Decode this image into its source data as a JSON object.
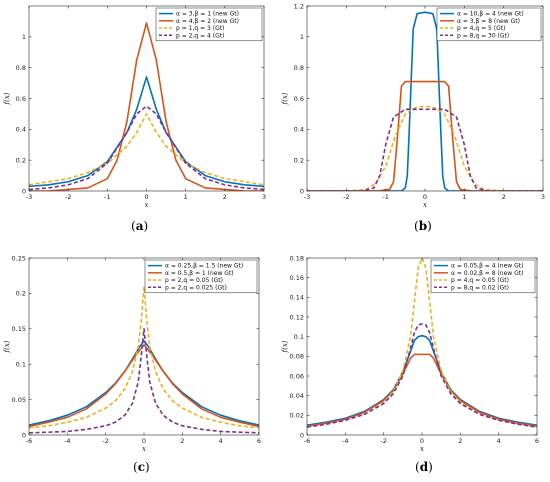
{
  "chart_data": [
    {
      "type": "line",
      "caption": "a",
      "xlabel": "x",
      "ylabel": "f(x)",
      "xlim": [
        -3,
        3
      ],
      "ylim": [
        0,
        1.2
      ],
      "xticks": [
        "-3",
        "-2",
        "-1",
        "0",
        "1",
        "2",
        "3"
      ],
      "yticks": [
        "0",
        "0.2",
        "0.4",
        "0.6",
        "0.8",
        "1"
      ],
      "legend_position": "top-right",
      "series": [
        {
          "name": "α = 3,β = 1 (new Gt)",
          "color": "#0072BD",
          "dash": "solid",
          "x": [
            -3,
            -2.5,
            -2,
            -1.5,
            -1,
            -0.5,
            -0.25,
            0,
            0.25,
            0.5,
            1,
            1.5,
            2,
            2.5,
            3
          ],
          "y": [
            0.03,
            0.04,
            0.06,
            0.1,
            0.19,
            0.38,
            0.53,
            0.74,
            0.53,
            0.38,
            0.19,
            0.1,
            0.06,
            0.04,
            0.03
          ]
        },
        {
          "name": "α = 4,β = 2 (new Gt)",
          "color": "#D95319",
          "dash": "solid",
          "x": [
            -3,
            -2.5,
            -2,
            -1.5,
            -1,
            -0.75,
            -0.5,
            -0.25,
            0,
            0.25,
            0.5,
            0.75,
            1,
            1.5,
            2,
            2.5,
            3
          ],
          "y": [
            0.0,
            0.0,
            0.01,
            0.02,
            0.08,
            0.2,
            0.45,
            0.85,
            1.09,
            0.85,
            0.45,
            0.2,
            0.08,
            0.02,
            0.01,
            0.0,
            0.0
          ]
        },
        {
          "name": "p = 1,q = 3 (Gt)",
          "color": "#EDB120",
          "dash": "dashed",
          "x": [
            -3,
            -2.5,
            -2,
            -1.5,
            -1,
            -0.5,
            -0.25,
            0,
            0.25,
            0.5,
            1,
            1.5,
            2,
            2.5,
            3
          ],
          "y": [
            0.04,
            0.06,
            0.08,
            0.12,
            0.18,
            0.29,
            0.38,
            0.5,
            0.38,
            0.29,
            0.18,
            0.12,
            0.08,
            0.06,
            0.04
          ]
        },
        {
          "name": "p = 2,q = 4 (Gt)",
          "color": "#7E2F8E",
          "dash": "dashed",
          "x": [
            -3,
            -2.5,
            -2,
            -1.5,
            -1,
            -0.5,
            -0.25,
            0,
            0.25,
            0.5,
            1,
            1.5,
            2,
            2.5,
            3
          ],
          "y": [
            0.01,
            0.02,
            0.04,
            0.08,
            0.18,
            0.38,
            0.5,
            0.55,
            0.5,
            0.38,
            0.18,
            0.08,
            0.04,
            0.02,
            0.01
          ]
        }
      ]
    },
    {
      "type": "line",
      "caption": "b",
      "xlabel": "x",
      "ylabel": "f(x)",
      "xlim": [
        -3,
        3
      ],
      "ylim": [
        0,
        1.2
      ],
      "xticks": [
        "-3",
        "-2",
        "-1",
        "0",
        "1",
        "2",
        "3"
      ],
      "yticks": [
        "0",
        "0.2",
        "0.4",
        "0.6",
        "0.8",
        "1",
        "1.2"
      ],
      "legend_position": "top-right",
      "series": [
        {
          "name": "α = 10,β = 4 (new Gt)",
          "color": "#0072BD",
          "dash": "solid",
          "x": [
            -3,
            -1,
            -0.6,
            -0.5,
            -0.45,
            -0.4,
            -0.3,
            -0.2,
            0,
            0.2,
            0.3,
            0.4,
            0.45,
            0.5,
            0.6,
            1,
            3
          ],
          "y": [
            0,
            0,
            0.0,
            0.02,
            0.1,
            0.4,
            1.05,
            1.15,
            1.16,
            1.15,
            1.05,
            0.4,
            0.1,
            0.02,
            0.0,
            0,
            0
          ]
        },
        {
          "name": "α = 3,β = 8 (new Gt)",
          "color": "#D95319",
          "dash": "solid",
          "x": [
            -3,
            -1.2,
            -0.9,
            -0.8,
            -0.7,
            -0.6,
            -0.5,
            0,
            0.5,
            0.6,
            0.7,
            0.8,
            0.9,
            1.2,
            3
          ],
          "y": [
            0,
            0,
            0.01,
            0.06,
            0.35,
            0.68,
            0.71,
            0.71,
            0.71,
            0.68,
            0.35,
            0.06,
            0.01,
            0,
            0
          ]
        },
        {
          "name": "p = 4,q = 5 (Gt)",
          "color": "#EDB120",
          "dash": "dashed",
          "x": [
            -3,
            -2,
            -1.5,
            -1.25,
            -1,
            -0.75,
            -0.5,
            -0.25,
            0,
            0.25,
            0.5,
            0.75,
            1,
            1.25,
            1.5,
            2,
            3
          ],
          "y": [
            0,
            0.0,
            0.01,
            0.05,
            0.16,
            0.36,
            0.5,
            0.54,
            0.55,
            0.54,
            0.5,
            0.36,
            0.16,
            0.05,
            0.01,
            0.0,
            0
          ]
        },
        {
          "name": "p = 8,q = 30 (Gt)",
          "color": "#7E2F8E",
          "dash": "dashed",
          "x": [
            -3,
            -1.6,
            -1.3,
            -1.15,
            -1.0,
            -0.8,
            -0.5,
            0,
            0.5,
            0.8,
            1.0,
            1.15,
            1.3,
            1.6,
            3
          ],
          "y": [
            0,
            0,
            0.02,
            0.1,
            0.3,
            0.48,
            0.53,
            0.53,
            0.53,
            0.48,
            0.3,
            0.1,
            0.02,
            0,
            0
          ]
        }
      ]
    },
    {
      "type": "line",
      "caption": "c",
      "xlabel": "x",
      "ylabel": "f(x)",
      "xlim": [
        -6,
        6
      ],
      "ylim": [
        0,
        0.25
      ],
      "xticks": [
        "-6",
        "-4",
        "-2",
        "0",
        "2",
        "4",
        "6"
      ],
      "yticks": [
        "0",
        "0.05",
        "0.1",
        "0.15",
        "0.2",
        "0.25"
      ],
      "legend_position": "top-right",
      "series": [
        {
          "name": "α = 0.25,β = 1.5 (new Gt)",
          "color": "#0072BD",
          "dash": "solid",
          "x": [
            -6,
            -5,
            -4,
            -3,
            -2,
            -1.5,
            -1,
            -0.5,
            -0.25,
            0,
            0.25,
            0.5,
            1,
            1.5,
            2,
            3,
            4,
            5,
            6
          ],
          "y": [
            0.014,
            0.02,
            0.028,
            0.04,
            0.06,
            0.073,
            0.09,
            0.112,
            0.124,
            0.133,
            0.124,
            0.112,
            0.09,
            0.073,
            0.06,
            0.04,
            0.028,
            0.02,
            0.014
          ]
        },
        {
          "name": "α = 0.5,β = 1 (new Gt)",
          "color": "#D95319",
          "dash": "solid",
          "x": [
            -6,
            -5,
            -4,
            -3,
            -2,
            -1.5,
            -1,
            -0.5,
            -0.25,
            0,
            0.25,
            0.5,
            1,
            1.5,
            2,
            3,
            4,
            5,
            6
          ],
          "y": [
            0.012,
            0.018,
            0.025,
            0.037,
            0.058,
            0.072,
            0.09,
            0.11,
            0.119,
            0.127,
            0.119,
            0.11,
            0.09,
            0.072,
            0.058,
            0.037,
            0.025,
            0.018,
            0.012
          ]
        },
        {
          "name": "p = 2,q = 0.05 (Gt)",
          "color": "#EDB120",
          "dash": "dashed",
          "x": [
            -6,
            -5,
            -4,
            -3,
            -2,
            -1.5,
            -1,
            -0.6,
            -0.3,
            -0.15,
            0,
            0.15,
            0.3,
            0.6,
            1,
            1.5,
            2,
            3,
            4,
            5,
            6
          ],
          "y": [
            0.01,
            0.013,
            0.018,
            0.025,
            0.038,
            0.048,
            0.065,
            0.09,
            0.125,
            0.16,
            0.21,
            0.16,
            0.125,
            0.09,
            0.065,
            0.048,
            0.038,
            0.025,
            0.018,
            0.013,
            0.01
          ]
        },
        {
          "name": "p = 2,q = 0.025 (Gt)",
          "color": "#7E2F8E",
          "dash": "dashed",
          "x": [
            -6,
            -5,
            -4,
            -3,
            -2,
            -1.5,
            -1,
            -0.6,
            -0.3,
            -0.15,
            0,
            0.15,
            0.3,
            0.6,
            1,
            1.5,
            2,
            3,
            4,
            5,
            6
          ],
          "y": [
            0.003,
            0.004,
            0.005,
            0.008,
            0.013,
            0.018,
            0.028,
            0.045,
            0.075,
            0.11,
            0.15,
            0.11,
            0.075,
            0.045,
            0.028,
            0.018,
            0.013,
            0.008,
            0.005,
            0.004,
            0.003
          ]
        }
      ]
    },
    {
      "type": "line",
      "caption": "d",
      "xlabel": "x",
      "ylabel": "f(x)",
      "xlim": [
        -6,
        6
      ],
      "ylim": [
        0,
        0.18
      ],
      "xticks": [
        "-6",
        "-4",
        "-2",
        "0",
        "2",
        "4",
        "6"
      ],
      "yticks": [
        "0",
        "0.02",
        "0.04",
        "0.06",
        "0.08",
        "0.1",
        "0.12",
        "0.14",
        "0.16",
        "0.18"
      ],
      "legend_position": "top-right",
      "series": [
        {
          "name": "α = 0.05,β = 4 (new Gt)",
          "color": "#0072BD",
          "dash": "solid",
          "x": [
            -6,
            -5,
            -4,
            -3,
            -2,
            -1.5,
            -1,
            -0.6,
            -0.4,
            -0.2,
            0,
            0.2,
            0.4,
            0.6,
            1,
            1.5,
            2,
            3,
            4,
            5,
            6
          ],
          "y": [
            0.01,
            0.013,
            0.017,
            0.024,
            0.036,
            0.046,
            0.064,
            0.085,
            0.096,
            0.1,
            0.101,
            0.1,
            0.096,
            0.085,
            0.064,
            0.046,
            0.036,
            0.024,
            0.017,
            0.013,
            0.01
          ]
        },
        {
          "name": "α = 0.02,β = 8 (new Gt)",
          "color": "#D95319",
          "dash": "solid",
          "x": [
            -6,
            -5,
            -4,
            -3,
            -2,
            -1.5,
            -1,
            -0.6,
            -0.4,
            -0.2,
            0,
            0.2,
            0.4,
            0.6,
            1,
            1.5,
            2,
            3,
            4,
            5,
            6
          ],
          "y": [
            0.009,
            0.012,
            0.016,
            0.023,
            0.035,
            0.045,
            0.062,
            0.078,
            0.082,
            0.082,
            0.082,
            0.082,
            0.082,
            0.078,
            0.062,
            0.045,
            0.035,
            0.023,
            0.016,
            0.012,
            0.009
          ]
        },
        {
          "name": "p = 4,q = 0.05 (Gt)",
          "color": "#EDB120",
          "dash": "dashed",
          "x": [
            -6,
            -5,
            -4,
            -3,
            -2,
            -1.5,
            -1,
            -0.6,
            -0.4,
            -0.2,
            0,
            0.2,
            0.4,
            0.6,
            1,
            1.5,
            2,
            3,
            4,
            5,
            6
          ],
          "y": [
            0.008,
            0.011,
            0.015,
            0.021,
            0.033,
            0.044,
            0.065,
            0.1,
            0.135,
            0.17,
            0.18,
            0.17,
            0.135,
            0.1,
            0.065,
            0.044,
            0.033,
            0.021,
            0.015,
            0.011,
            0.008
          ]
        },
        {
          "name": "p = 8,q = 0.02 (Gt)",
          "color": "#7E2F8E",
          "dash": "dashed",
          "x": [
            -6,
            -5,
            -4,
            -3,
            -2,
            -1.5,
            -1,
            -0.6,
            -0.4,
            -0.2,
            0,
            0.2,
            0.4,
            0.6,
            1,
            1.5,
            2,
            3,
            4,
            5,
            6
          ],
          "y": [
            0.008,
            0.011,
            0.015,
            0.021,
            0.032,
            0.042,
            0.06,
            0.088,
            0.104,
            0.112,
            0.113,
            0.112,
            0.104,
            0.088,
            0.06,
            0.042,
            0.032,
            0.021,
            0.015,
            0.011,
            0.008
          ]
        }
      ]
    }
  ]
}
